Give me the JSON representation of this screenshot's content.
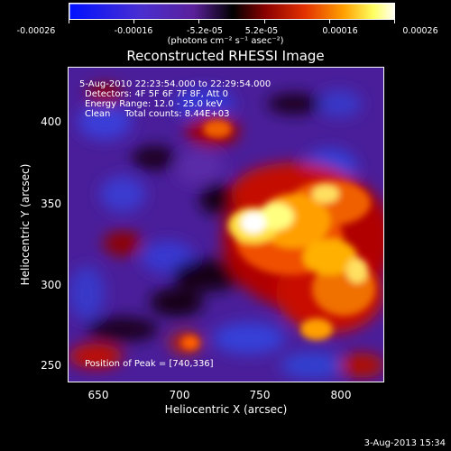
{
  "colorbar": {
    "ticks": [
      "-0.00026",
      "-0.00016",
      "-5.2e-05",
      "5.2e-05",
      "0.00016",
      "0.00026"
    ],
    "units": "(photons cm⁻² s⁻¹ asec⁻²)"
  },
  "title": "Reconstructed RHESSI Image",
  "info": {
    "time_range": "5-Aug-2010 22:23:54.000 to 22:29:54.000",
    "detectors": "Detectors: 4F 5F 6F 7F 8F, Att 0",
    "energy": "Energy Range: 12.0 - 25.0 keV",
    "clean": "Clean     Total counts: 8.44E+03",
    "peak": "Position of Peak = [740,336]"
  },
  "axes": {
    "xlabel": "Heliocentric X (arcsec)",
    "ylabel": "Heliocentric Y (arcsec)",
    "xticks": [
      "650",
      "700",
      "750",
      "800"
    ],
    "yticks": [
      "250",
      "300",
      "350",
      "400"
    ]
  },
  "timestamp": "3-Aug-2013 15:34"
}
